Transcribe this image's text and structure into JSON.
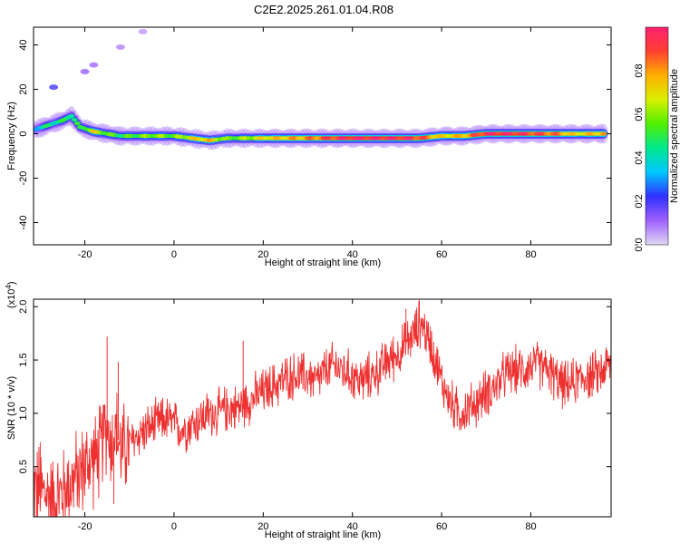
{
  "chart_data": [
    {
      "type": "heatmap",
      "title": "C2E2.2025.261.01.04.R08",
      "xlabel": "Height of straight line (km)",
      "ylabel": "Frequency (Hz)",
      "xlim": [
        -31.5,
        98
      ],
      "ylim": [
        -50,
        48
      ],
      "x_ticks": [
        -20,
        0,
        20,
        40,
        60,
        80
      ],
      "y_ticks": [
        -40,
        -20,
        0,
        20,
        40
      ],
      "colorbar": {
        "label": "Normalized spectral amplitude",
        "range": [
          0,
          1
        ],
        "ticks": [
          "0.0",
          "0.2",
          "0.4",
          "0.6",
          "0.8"
        ],
        "tick_values": [
          0,
          0.2,
          0.4,
          0.6,
          0.8
        ],
        "stops": [
          "#e0d8f4",
          "#a060ff",
          "#3030ff",
          "#00c8ff",
          "#00e890",
          "#50f000",
          "#d8f000",
          "#ffb000",
          "#ff4030",
          "#ff2070"
        ]
      },
      "main_band": [
        {
          "x": -31,
          "f": 2,
          "amp": 0.35
        },
        {
          "x": -28,
          "f": 4,
          "amp": 0.45
        },
        {
          "x": -25,
          "f": 6,
          "amp": 0.45
        },
        {
          "x": -23,
          "f": 8,
          "amp": 0.5
        },
        {
          "x": -21,
          "f": 3,
          "amp": 0.45
        },
        {
          "x": -18,
          "f": 1,
          "amp": 0.7
        },
        {
          "x": -15,
          "f": 0,
          "amp": 0.55
        },
        {
          "x": -12,
          "f": -1,
          "amp": 0.5
        },
        {
          "x": -8,
          "f": -1,
          "amp": 0.55
        },
        {
          "x": -4,
          "f": -1,
          "amp": 0.6
        },
        {
          "x": 0,
          "f": -1,
          "amp": 0.55
        },
        {
          "x": 4,
          "f": -2,
          "amp": 0.7
        },
        {
          "x": 8,
          "f": -3,
          "amp": 0.75
        },
        {
          "x": 12,
          "f": -2,
          "amp": 0.55
        },
        {
          "x": 16,
          "f": -2,
          "amp": 0.6
        },
        {
          "x": 20,
          "f": -2,
          "amp": 0.7
        },
        {
          "x": 25,
          "f": -2,
          "amp": 0.75
        },
        {
          "x": 30,
          "f": -2,
          "amp": 0.8
        },
        {
          "x": 35,
          "f": -2,
          "amp": 0.9
        },
        {
          "x": 40,
          "f": -2,
          "amp": 0.95
        },
        {
          "x": 45,
          "f": -2,
          "amp": 0.95
        },
        {
          "x": 50,
          "f": -2,
          "amp": 0.95
        },
        {
          "x": 55,
          "f": -2,
          "amp": 0.9
        },
        {
          "x": 60,
          "f": -1,
          "amp": 0.7
        },
        {
          "x": 65,
          "f": -1,
          "amp": 0.75
        },
        {
          "x": 70,
          "f": 0,
          "amp": 0.95
        },
        {
          "x": 75,
          "f": 0,
          "amp": 0.95
        },
        {
          "x": 80,
          "f": 0,
          "amp": 0.9
        },
        {
          "x": 85,
          "f": 0,
          "amp": 0.85
        },
        {
          "x": 90,
          "f": 0,
          "amp": 0.7
        },
        {
          "x": 95,
          "f": 0,
          "amp": 0.75
        },
        {
          "x": 97,
          "f": 0,
          "amp": 0.8
        }
      ],
      "weak_features": [
        {
          "x": -27,
          "f": 21,
          "amp": 0.2
        },
        {
          "x": -20,
          "f": 28,
          "amp": 0.12
        },
        {
          "x": -18,
          "f": 31,
          "amp": 0.1
        },
        {
          "x": -12,
          "f": 39,
          "amp": 0.08
        },
        {
          "x": -7,
          "f": 46,
          "amp": 0.06
        }
      ]
    },
    {
      "type": "line",
      "title": "",
      "xlabel": "Height of straight line (km)",
      "ylabel": "SNR (10 * v/v)",
      "y_scale_label": "(x10",
      "y_scale_exponent": "4",
      "xlim": [
        -31.5,
        98
      ],
      "ylim": [
        0.03,
        2.07
      ],
      "x_ticks": [
        -20,
        0,
        20,
        40,
        60,
        80
      ],
      "y_ticks": [
        0.5,
        1.0,
        1.5,
        2.0
      ],
      "y_tick_labels": [
        "0.5",
        "1.0",
        "1.5",
        "2.0"
      ],
      "color": "#ee3030",
      "x": [
        -31,
        -29,
        -27,
        -25,
        -23,
        -21,
        -19,
        -17,
        -16,
        -15,
        -14,
        -13,
        -12,
        -10,
        -8,
        -6,
        -4,
        -2,
        0,
        2,
        4,
        6,
        8,
        10,
        12,
        14,
        16,
        18,
        20,
        22,
        24,
        26,
        28,
        30,
        32,
        34,
        36,
        38,
        40,
        42,
        44,
        46,
        48,
        50,
        52,
        54,
        55,
        56,
        58,
        60,
        62,
        64,
        66,
        68,
        70,
        72,
        74,
        76,
        78,
        80,
        82,
        84,
        86,
        88,
        90,
        92,
        94,
        96,
        97
      ],
      "y": [
        0.3,
        0.25,
        0.2,
        0.25,
        0.35,
        0.45,
        0.55,
        0.6,
        0.75,
        0.9,
        0.7,
        0.85,
        0.65,
        0.7,
        0.8,
        0.85,
        0.9,
        0.95,
        0.9,
        0.85,
        0.9,
        0.95,
        1.0,
        1.0,
        1.05,
        1.05,
        1.1,
        1.15,
        1.2,
        1.25,
        1.3,
        1.35,
        1.35,
        1.35,
        1.3,
        1.4,
        1.45,
        1.4,
        1.35,
        1.3,
        1.35,
        1.4,
        1.5,
        1.55,
        1.65,
        1.75,
        1.85,
        1.8,
        1.6,
        1.3,
        1.1,
        1.0,
        1.05,
        1.1,
        1.2,
        1.25,
        1.35,
        1.4,
        1.4,
        1.45,
        1.45,
        1.4,
        1.3,
        1.25,
        1.3,
        1.35,
        1.35,
        1.4,
        1.45
      ],
      "spikes": [
        {
          "x": -30,
          "y": 0.73
        },
        {
          "x": -15,
          "y": 1.72
        },
        {
          "x": -12.5,
          "y": 1.48
        },
        {
          "x": -13.5,
          "y": 0.15
        },
        {
          "x": 15.5,
          "y": 1.68
        },
        {
          "x": 55,
          "y": 2.06
        },
        {
          "x": 52,
          "y": 1.98
        }
      ]
    }
  ]
}
